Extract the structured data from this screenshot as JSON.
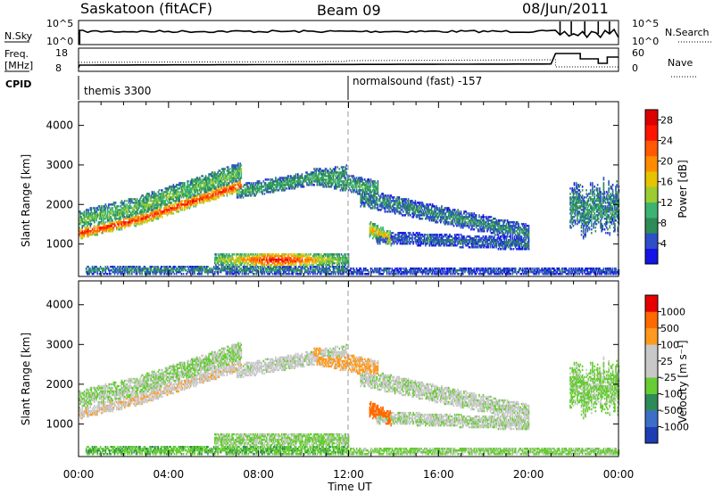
{
  "header": {
    "station": "Saskatoon (fitACF)",
    "beam": "Beam 09",
    "date": "08/Jun/2011"
  },
  "param_panels": {
    "nsky": {
      "label": "N.Sky",
      "ticks": [
        "10^5",
        "10^0"
      ],
      "right_label": "N.Search",
      "right_ticks": [
        "10^5",
        "10^0"
      ]
    },
    "freq": {
      "label_line1": "Freq.",
      "label_line2": "[MHz]",
      "ticks": [
        "18",
        "8"
      ],
      "right_label": "Nave",
      "right_ticks": [
        "60",
        "0"
      ]
    },
    "cpid": {
      "label": "CPID",
      "entries": [
        {
          "text": "themis 3300",
          "start_hour": 0
        },
        {
          "text": "normalsound (fast) -157",
          "start_hour": 12
        }
      ]
    }
  },
  "x_axis": {
    "ticks": [
      "00:00",
      "04:00",
      "08:00",
      "12:00",
      "16:00",
      "20:00",
      "00:00"
    ],
    "tick_hours": [
      0,
      4,
      8,
      12,
      16,
      20,
      24
    ],
    "label": "Time UT"
  },
  "chart_data": [
    {
      "type": "heatmap",
      "name": "power",
      "xlabel": "Time UT",
      "ylabel": "Slant Range [km]",
      "xlim": [
        0,
        24
      ],
      "ylim": [
        180,
        4600
      ],
      "yticks": [
        "1000",
        "2000",
        "3000",
        "4000"
      ],
      "ytick_values": [
        1000,
        2000,
        3000,
        4000
      ],
      "colorbar": {
        "label": "Power [dB]",
        "ticks": [
          "4",
          "8",
          "12",
          "16",
          "20",
          "24",
          "28"
        ],
        "tick_values": [
          4,
          8,
          12,
          16,
          20,
          24,
          28
        ],
        "range": [
          0,
          30
        ],
        "colors": [
          "#1414e6",
          "#2d50c8",
          "#2e8b57",
          "#3cb371",
          "#9acd32",
          "#e6c300",
          "#ff8c00",
          "#ff5a00",
          "#ff1400",
          "#dc0000"
        ]
      }
    },
    {
      "type": "heatmap",
      "name": "velocity",
      "xlabel": "Time UT",
      "ylabel": "Slant Range [km]",
      "xlim": [
        0,
        24
      ],
      "ylim": [
        180,
        4600
      ],
      "yticks": [
        "1000",
        "2000",
        "3000",
        "4000"
      ],
      "ytick_values": [
        1000,
        2000,
        3000,
        4000
      ],
      "colorbar": {
        "label": "Velocity [m s⁻¹]",
        "ticks": [
          "1000",
          "500",
          "100",
          "25",
          "-25",
          "-100",
          "-500",
          "-1000"
        ],
        "colors": [
          "#1e3cb4",
          "#3c6ec8",
          "#2e8b57",
          "#66cc33",
          "#c8c8c8",
          "#c8c8c8",
          "#ff9a1e",
          "#ff6a00",
          "#e60000"
        ]
      }
    }
  ]
}
